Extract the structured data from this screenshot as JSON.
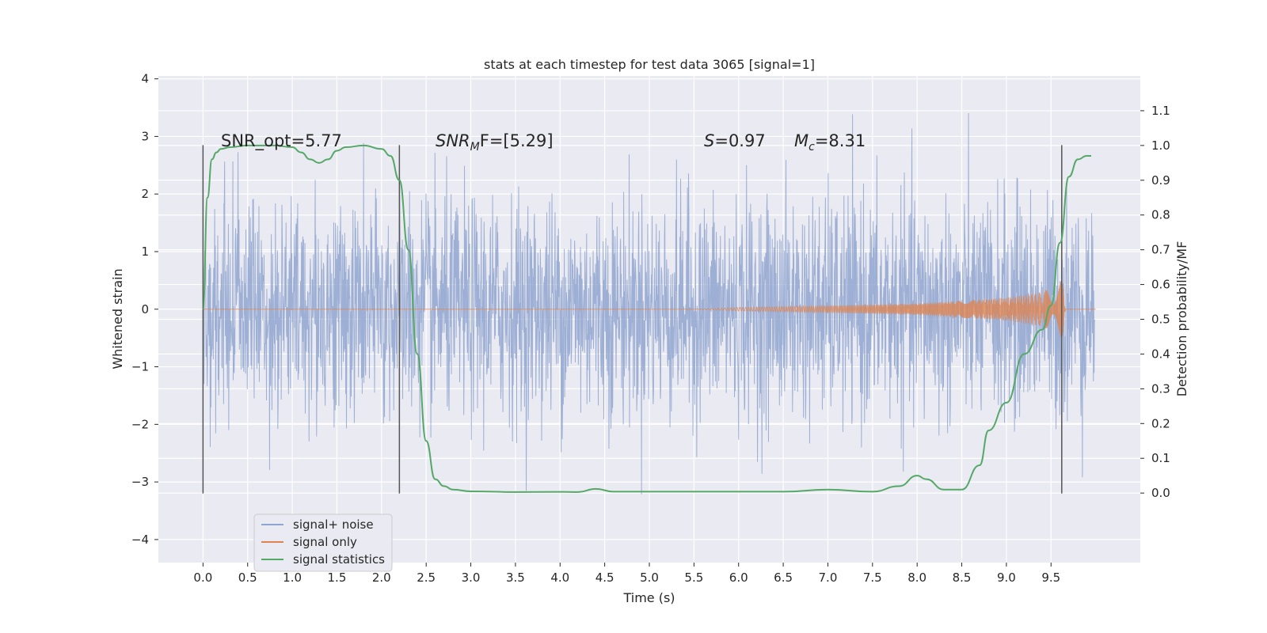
{
  "chart_data": {
    "type": "line",
    "title": "stats at each timestep for test data 3065 [signal=1]",
    "xlabel": "Time (s)",
    "ylabel": "Whitened strain",
    "ylabel_right": "Detection probability/MF",
    "xlim": [
      -0.5,
      10.5
    ],
    "ylim": [
      -4.4,
      4.05
    ],
    "ylim_right": [
      -0.2,
      1.2
    ],
    "x_ticks": [
      "0.0",
      "0.5",
      "1.0",
      "1.5",
      "2.0",
      "2.5",
      "3.0",
      "3.5",
      "4.0",
      "4.5",
      "5.0",
      "5.5",
      "6.0",
      "6.5",
      "7.0",
      "7.5",
      "8.0",
      "8.5",
      "9.0",
      "9.5"
    ],
    "y_ticks": [
      "4",
      "3",
      "2",
      "1",
      "0",
      "−1",
      "−2",
      "−3",
      "−4"
    ],
    "y_right_ticks": [
      "1.1",
      "1.0",
      "0.9",
      "0.8",
      "0.7",
      "0.6",
      "0.5",
      "0.4",
      "0.3",
      "0.2",
      "0.1",
      "0.0"
    ],
    "grid": true,
    "legend_position": "lower-left",
    "colors": {
      "background": "#eaeaf2",
      "noise": "#8fa5cf",
      "signal": "#dd8452",
      "statistics": "#55a868",
      "vline": "#555555"
    },
    "annotations": {
      "snr_opt": "SNR_opt=5.77",
      "snr_mf_base": "SNR",
      "snr_mf_sub": "M",
      "snr_mf_rest": "F=[5.29]",
      "s_base": "S",
      "s_rest": "=0.97",
      "mc_base": "M",
      "mc_sub": "c",
      "mc_rest": "=8.31"
    },
    "vlines_x": [
      0.0,
      2.2,
      9.62
    ],
    "series": [
      {
        "name": "signal+ noise",
        "x_range": [
          0.0,
          9.99
        ],
        "description_values": {
          "typical_band": [
            -1.6,
            1.6
          ],
          "max": 3.65,
          "min": -4.05
        }
      },
      {
        "name": "signal only",
        "envelope": {
          "t": [
            0.0,
            5.5,
            6.0,
            7.0,
            8.0,
            9.0,
            9.4,
            9.6,
            9.65,
            9.66
          ],
          "amp": [
            0.0,
            0.0,
            0.03,
            0.06,
            0.1,
            0.2,
            0.3,
            0.45,
            0.6,
            0.0
          ]
        }
      },
      {
        "name": "signal statistics",
        "x": [
          0.0,
          0.05,
          0.1,
          0.15,
          0.2,
          0.3,
          0.5,
          0.8,
          1.0,
          1.1,
          1.2,
          1.3,
          1.4,
          1.5,
          1.6,
          1.8,
          2.0,
          2.1,
          2.2,
          2.3,
          2.4,
          2.5,
          2.6,
          2.7,
          2.8,
          3.0,
          3.5,
          4.0,
          4.2,
          4.4,
          4.6,
          5.0,
          5.5,
          6.0,
          6.5,
          7.0,
          7.5,
          7.8,
          8.0,
          8.1,
          8.3,
          8.5,
          8.7,
          8.8,
          9.0,
          9.2,
          9.4,
          9.5,
          9.6,
          9.7,
          9.8,
          9.9,
          9.95
        ],
        "y": [
          0.53,
          0.85,
          0.96,
          0.98,
          0.99,
          0.995,
          1.0,
          1.0,
          0.995,
          0.98,
          0.96,
          0.95,
          0.96,
          0.985,
          0.995,
          1.0,
          0.99,
          0.97,
          0.9,
          0.7,
          0.4,
          0.15,
          0.04,
          0.02,
          0.01,
          0.005,
          0.003,
          0.0035,
          0.003,
          0.012,
          0.004,
          0.004,
          0.004,
          0.004,
          0.004,
          0.01,
          0.004,
          0.02,
          0.05,
          0.04,
          0.01,
          0.01,
          0.08,
          0.18,
          0.26,
          0.4,
          0.47,
          0.54,
          0.72,
          0.91,
          0.96,
          0.97,
          0.97
        ]
      }
    ],
    "legend": [
      "signal+ noise",
      "signal only",
      "signal statistics"
    ]
  }
}
